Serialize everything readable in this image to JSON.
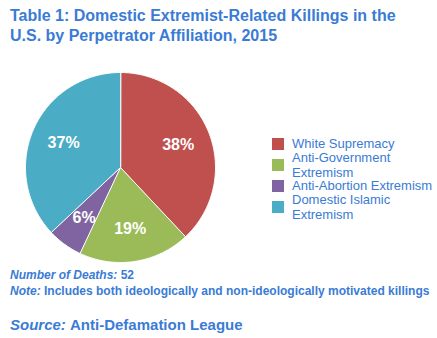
{
  "chart_data": {
    "type": "pie",
    "title": "Table 1: Domestic Extremist-Related Killings in the U.S. by Perpetrator Affiliation, 2015",
    "categories": [
      "White Supremacy",
      "Anti-Government Extremism",
      "Anti-Abortion Extremism",
      "Domestic Islamic Extremism"
    ],
    "values": [
      38,
      19,
      6,
      37
    ],
    "value_labels": [
      "38%",
      "19%",
      "6%",
      "37%"
    ],
    "colors": [
      "#c0504d",
      "#9bbb59",
      "#8064a2",
      "#4bacc6"
    ],
    "data_labels": true,
    "tick_labels": false,
    "legend": "right",
    "annotations": [
      {
        "label": "Number of Deaths:",
        "text": "52"
      },
      {
        "label": "Note:",
        "text": "Includes both ideologically and non-ideologically motivated killings"
      }
    ],
    "source": {
      "label": "Source:",
      "text": "Anti-Defamation League"
    }
  }
}
